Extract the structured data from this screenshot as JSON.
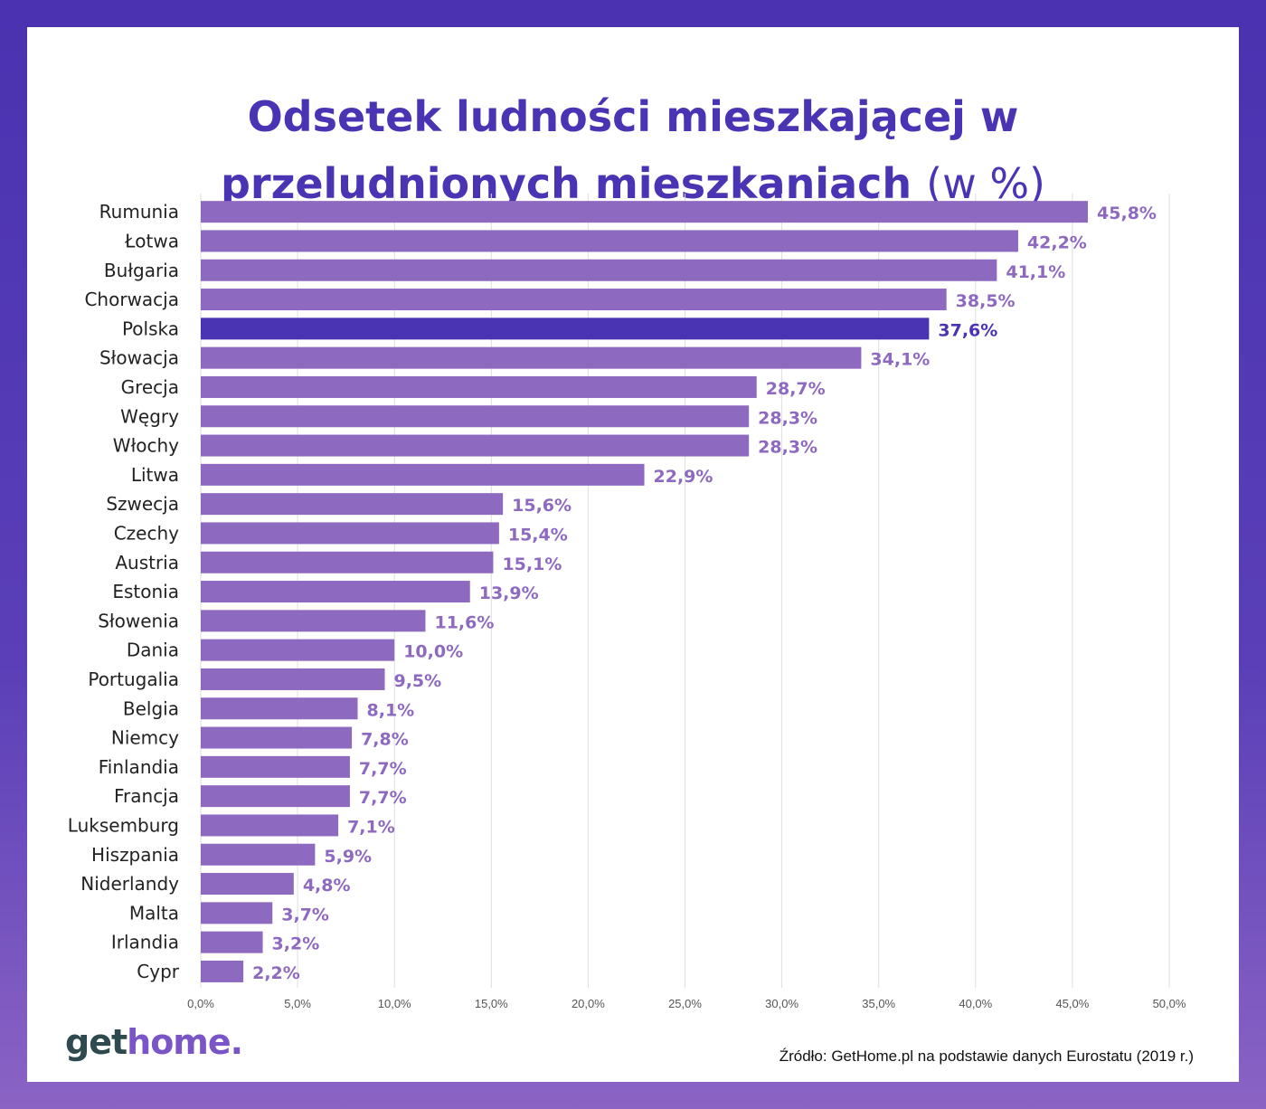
{
  "title": {
    "line1": "Odsetek ludności mieszkającej w",
    "line2_main": "przeludnionych mieszkaniach",
    "line2_unit": "(w %)"
  },
  "chart_data": {
    "type": "bar",
    "orientation": "horizontal",
    "categories": [
      "Rumunia",
      "Łotwa",
      "Bułgaria",
      "Chorwacja",
      "Polska",
      "Słowacja",
      "Grecja",
      "Węgry",
      "Włochy",
      "Litwa",
      "Szwecja",
      "Czechy",
      "Austria",
      "Estonia",
      "Słowenia",
      "Dania",
      "Portugalia",
      "Belgia",
      "Niemcy",
      "Finlandia",
      "Francja",
      "Luksemburg",
      "Hiszpania",
      "Niderlandy",
      "Malta",
      "Irlandia",
      "Cypr"
    ],
    "values": [
      45.8,
      42.2,
      41.1,
      38.5,
      37.6,
      34.1,
      28.7,
      28.3,
      28.3,
      22.9,
      15.6,
      15.4,
      15.1,
      13.9,
      11.6,
      10.0,
      9.5,
      8.1,
      7.8,
      7.7,
      7.7,
      7.1,
      5.9,
      4.8,
      3.7,
      3.2,
      2.2
    ],
    "value_labels": [
      "45,8%",
      "42,2%",
      "41,1%",
      "38,5%",
      "37,6%",
      "34,1%",
      "28,7%",
      "28,3%",
      "28,3%",
      "22,9%",
      "15,6%",
      "15,4%",
      "15,1%",
      "13,9%",
      "11,6%",
      "10,0%",
      "9,5%",
      "8,1%",
      "7,8%",
      "7,7%",
      "7,7%",
      "7,1%",
      "5,9%",
      "4,8%",
      "3,7%",
      "3,2%",
      "2,2%"
    ],
    "highlight": "Polska",
    "xlim": [
      0,
      50
    ],
    "x_ticks": [
      "0,0%",
      "5,0%",
      "10,0%",
      "15,0%",
      "20,0%",
      "25,0%",
      "30,0%",
      "35,0%",
      "40,0%",
      "45,0%",
      "50,0%"
    ],
    "grid": true,
    "colors": {
      "bar": "#8e69c0",
      "highlight": "#4b34b4"
    }
  },
  "branding": {
    "logo_part1": "get",
    "logo_part2": "home."
  },
  "source": "Źródło: GetHome.pl na podstawie danych Eurostatu (2019 r.)"
}
